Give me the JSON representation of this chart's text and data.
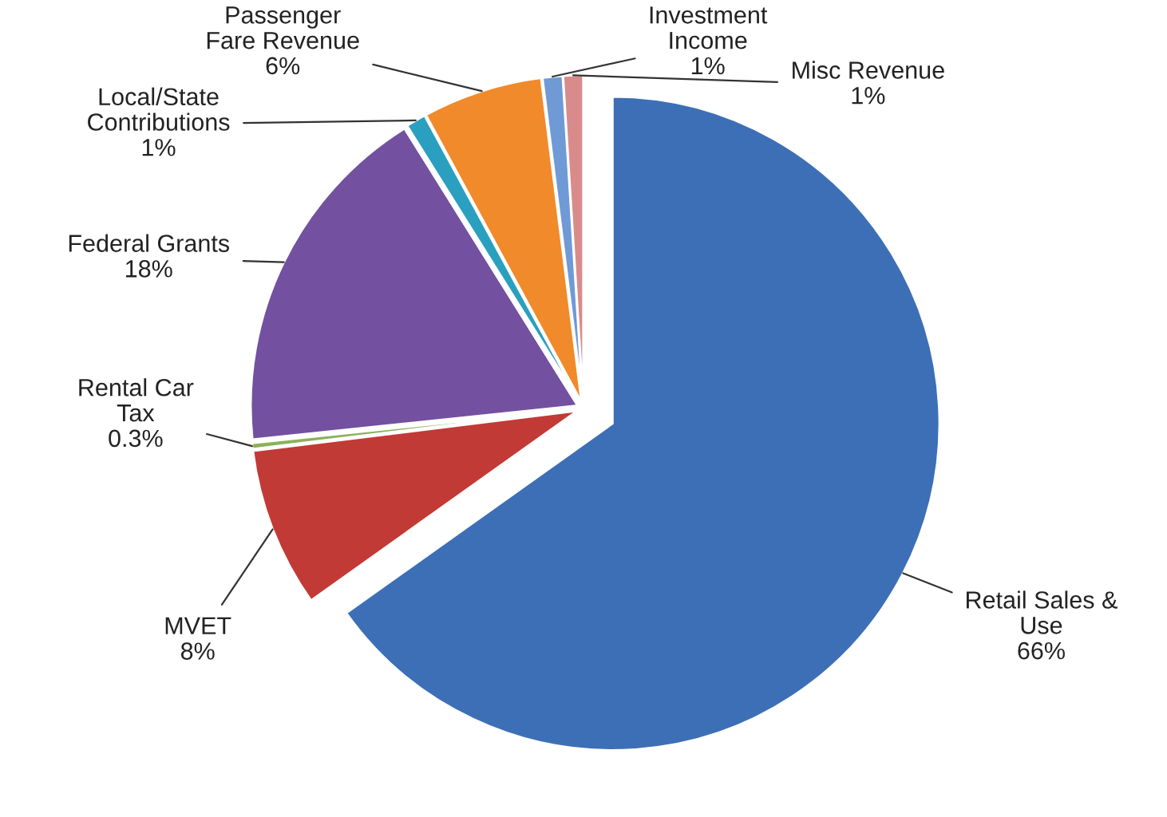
{
  "chart_data": {
    "type": "pie",
    "categories": [
      "Retail Sales &\nUse",
      "MVET",
      "Rental Car\nTax",
      "Federal Grants",
      "Local/State\nContributions",
      "Passenger\nFare Revenue",
      "Investment\nIncome",
      "Misc Revenue"
    ],
    "values": [
      66,
      8,
      0.3,
      18,
      1,
      6,
      1,
      1
    ],
    "value_labels": [
      "66%",
      "8%",
      "0.3%",
      "18%",
      "1%",
      "6%",
      "1%",
      "1%"
    ],
    "colors": [
      "#3d6fb6",
      "#c23a35",
      "#8cb15a",
      "#7350a0",
      "#2b9fbf",
      "#f08a2a",
      "#6f9ad6",
      "#d98b8b"
    ],
    "legend": false
  }
}
